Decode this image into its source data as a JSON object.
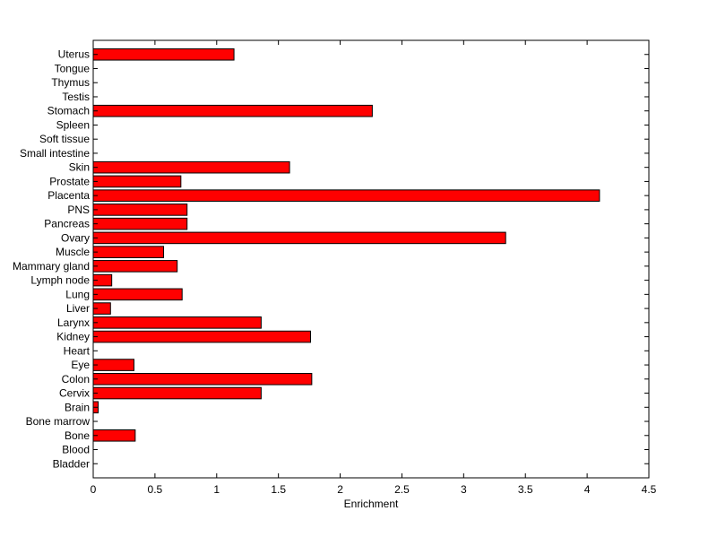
{
  "chart_data": {
    "type": "bar",
    "orientation": "horizontal",
    "title": "",
    "xlabel": "Enrichment",
    "ylabel": "",
    "xlim": [
      0,
      4.5
    ],
    "xticks": [
      0,
      0.5,
      1,
      1.5,
      2,
      2.5,
      3,
      3.5,
      4,
      4.5
    ],
    "xtick_labels": [
      "0",
      "0.5",
      "1",
      "1.5",
      "2",
      "2.5",
      "3",
      "3.5",
      "4",
      "4.5"
    ],
    "grid": false,
    "bar_color": "#ff0000",
    "edge_color": "#000000",
    "categories": [
      "Bladder",
      "Blood",
      "Bone",
      "Bone marrow",
      "Brain",
      "Cervix",
      "Colon",
      "Eye",
      "Heart",
      "Kidney",
      "Larynx",
      "Liver",
      "Lung",
      "Lymph node",
      "Mammary gland",
      "Muscle",
      "Ovary",
      "Pancreas",
      "PNS",
      "Placenta",
      "Prostate",
      "Skin",
      "Small intestine",
      "Soft tissue",
      "Spleen",
      "Stomach",
      "Testis",
      "Thymus",
      "Tongue",
      "Uterus"
    ],
    "values": [
      0,
      0,
      0.34,
      0,
      0.04,
      1.36,
      1.77,
      0.33,
      0,
      1.76,
      1.36,
      0.14,
      0.72,
      0.15,
      0.68,
      0.57,
      3.34,
      0.76,
      0.76,
      4.1,
      0.71,
      1.59,
      0,
      0,
      0,
      2.26,
      0,
      0,
      0,
      1.14
    ]
  }
}
